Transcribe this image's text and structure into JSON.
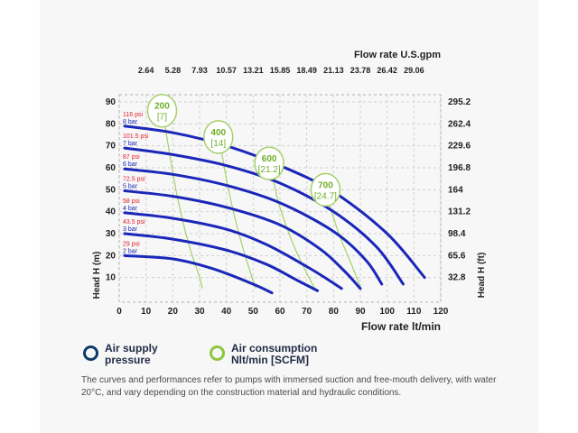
{
  "chart_data": {
    "type": "line",
    "top_axis_label": "Flow rate U.S.gpm",
    "top_ticks": [
      "2.64",
      "5.28",
      "7.93",
      "10.57",
      "13.21",
      "15.85",
      "18.49",
      "21.13",
      "23.78",
      "26.42",
      "29.06"
    ],
    "xlabel": "Flow rate lt/min",
    "xticks": [
      0,
      10,
      20,
      30,
      40,
      50,
      60,
      70,
      80,
      90,
      100,
      110,
      120
    ],
    "xlim": [
      0,
      120
    ],
    "ylabel": "Head H (m)",
    "yticks": [
      10,
      20,
      30,
      40,
      50,
      60,
      70,
      80,
      90
    ],
    "ylim": [
      0,
      95
    ],
    "ylabel_right": "Head H (ft)",
    "right_ticks": [
      {
        "label": "295.2",
        "y": 90
      },
      {
        "label": "262.4",
        "y": 80
      },
      {
        "label": "229.6",
        "y": 70
      },
      {
        "label": "196.8",
        "y": 60
      },
      {
        "label": "164",
        "y": 50
      },
      {
        "label": "131.2",
        "y": 40
      },
      {
        "label": "98.4",
        "y": 30
      },
      {
        "label": "65.6",
        "y": 20
      },
      {
        "label": "32.8",
        "y": 10
      }
    ],
    "grid": true,
    "pressure_series": [
      {
        "psi": "116 psi",
        "bar": "8 bar",
        "points": [
          [
            2,
            79
          ],
          [
            20,
            76
          ],
          [
            40,
            70
          ],
          [
            60,
            61
          ],
          [
            80,
            49
          ],
          [
            100,
            30
          ],
          [
            114,
            10
          ]
        ]
      },
      {
        "psi": "101.5 psi",
        "bar": "7 bar",
        "points": [
          [
            2,
            69
          ],
          [
            20,
            66
          ],
          [
            40,
            61
          ],
          [
            60,
            53
          ],
          [
            80,
            40
          ],
          [
            96,
            24
          ],
          [
            106,
            7
          ]
        ]
      },
      {
        "psi": "87 psi",
        "bar": "6 bar",
        "points": [
          [
            2,
            59.5
          ],
          [
            20,
            57
          ],
          [
            40,
            52
          ],
          [
            60,
            44
          ],
          [
            80,
            31
          ],
          [
            92,
            18
          ],
          [
            98,
            7
          ]
        ]
      },
      {
        "psi": "72.5 psi",
        "bar": "5 bar",
        "points": [
          [
            2,
            49.5
          ],
          [
            20,
            47
          ],
          [
            40,
            42
          ],
          [
            60,
            34
          ],
          [
            75,
            23
          ],
          [
            84,
            13
          ],
          [
            90,
            5
          ]
        ]
      },
      {
        "psi": "58 psi",
        "bar": "4 bar",
        "points": [
          [
            2,
            39.5
          ],
          [
            20,
            37
          ],
          [
            40,
            32
          ],
          [
            55,
            25
          ],
          [
            70,
            15
          ],
          [
            78,
            9
          ],
          [
            83,
            5
          ]
        ]
      },
      {
        "psi": "43.5 psi",
        "bar": "3 bar",
        "points": [
          [
            2,
            30
          ],
          [
            20,
            27.5
          ],
          [
            40,
            22.5
          ],
          [
            55,
            16
          ],
          [
            66,
            9
          ],
          [
            74,
            4
          ]
        ]
      },
      {
        "psi": "29 psi",
        "bar": "2 bar",
        "points": [
          [
            2,
            20
          ],
          [
            20,
            18.5
          ],
          [
            35,
            14
          ],
          [
            50,
            7
          ],
          [
            57,
            3
          ]
        ]
      }
    ],
    "air_series": [
      {
        "name": "200",
        "sub": "[7]",
        "label_at": [
          16,
          86
        ],
        "points": [
          [
            17,
            80
          ],
          [
            19,
            65
          ],
          [
            22,
            45
          ],
          [
            26,
            25
          ],
          [
            30,
            10
          ],
          [
            31,
            5
          ]
        ]
      },
      {
        "name": "400",
        "sub": "[14]",
        "label_at": [
          37,
          74
        ],
        "points": [
          [
            38,
            69
          ],
          [
            40,
            55
          ],
          [
            43,
            38
          ],
          [
            47,
            20
          ],
          [
            51,
            5
          ]
        ]
      },
      {
        "name": "600",
        "sub": "[21.2]",
        "label_at": [
          56,
          62
        ],
        "points": [
          [
            57,
            57
          ],
          [
            60,
            42
          ],
          [
            65,
            25
          ],
          [
            70,
            12
          ],
          [
            73,
            5
          ]
        ]
      },
      {
        "name": "700",
        "sub": "[24.7]",
        "label_at": [
          77,
          50
        ],
        "points": [
          [
            78,
            45
          ],
          [
            82,
            30
          ],
          [
            87,
            15
          ],
          [
            90,
            6
          ]
        ]
      }
    ]
  },
  "legend": {
    "supply": {
      "line1": "Air supply",
      "line2": "pressure",
      "color": "#0d3b66"
    },
    "consumption": {
      "line1": "Air consumption",
      "line2": "Nlt/min [SCFM]",
      "color": "#8dc63f"
    }
  },
  "colors": {
    "pressure_curve": "#1a27b8",
    "air_curve": "#a6d06a",
    "air_label": "#6fae2a",
    "psi_text": "#e0202a",
    "bar_text": "#1a27b8",
    "grid": "#cfcfcf"
  },
  "note": "The curves and performances refer to pumps with immersed suction and free-mouth delivery, with water 20°C, and vary depending on the construction material and hydraulic conditions."
}
